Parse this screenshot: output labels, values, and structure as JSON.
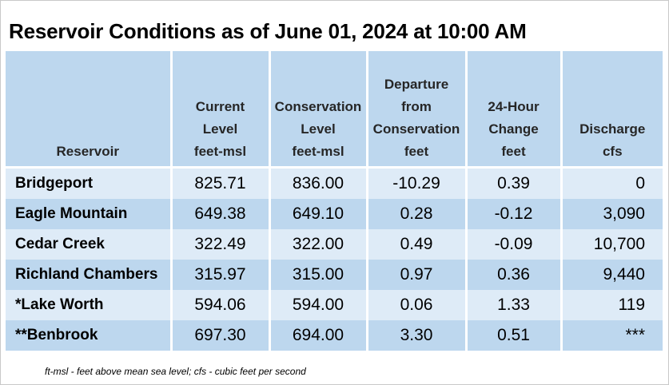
{
  "title": "Reservoir Conditions as of June 01, 2024 at 10:00 AM",
  "table": {
    "headers": [
      [
        "Reservoir"
      ],
      [
        "Current",
        "Level",
        "feet-msl"
      ],
      [
        "Conservation",
        "Level",
        "feet-msl"
      ],
      [
        "Departure",
        "from",
        "Conservation",
        "feet"
      ],
      [
        "24-Hour",
        "Change",
        "feet"
      ],
      [
        "Discharge",
        "cfs"
      ]
    ],
    "rows": [
      [
        "Bridgeport",
        "825.71",
        "836.00",
        "-10.29",
        "0.39",
        "0"
      ],
      [
        "Eagle Mountain",
        "649.38",
        "649.10",
        "0.28",
        "-0.12",
        "3,090"
      ],
      [
        "Cedar Creek",
        "322.49",
        "322.00",
        "0.49",
        "-0.09",
        "10,700"
      ],
      [
        "Richland Chambers",
        "315.97",
        "315.00",
        "0.97",
        "0.36",
        "9,440"
      ],
      [
        "*Lake Worth",
        "594.06",
        "594.00",
        "0.06",
        "1.33",
        "119"
      ],
      [
        "**Benbrook",
        "697.30",
        "694.00",
        "3.30",
        "0.51",
        "***"
      ]
    ]
  },
  "footnote": "ft-msl - feet above mean sea level; cfs - cubic feet per second",
  "colors": {
    "header_bg": "#bdd7ee",
    "row_light": "#deebf7",
    "row_dark": "#bdd7ee"
  }
}
